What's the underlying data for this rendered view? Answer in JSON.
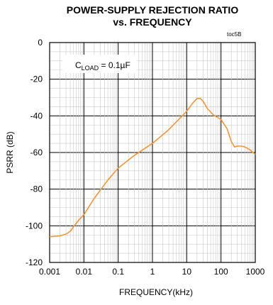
{
  "chart_data": {
    "type": "line",
    "title_line1": "POWER-SUPPLY REJECTION RATIO",
    "title_line2": "vs. FREQUENCY",
    "tag": "toc5B",
    "xlabel": "FREQUENCY(kHz)",
    "ylabel": "PSRR (dB)",
    "x_scale": "log",
    "xlim": [
      0.001,
      1000
    ],
    "ylim": [
      -120,
      0
    ],
    "x_ticks": [
      0.001,
      0.01,
      0.1,
      1,
      10,
      100,
      1000
    ],
    "x_tick_labels": [
      "0.001",
      "0.01",
      "0.1",
      "1",
      "10",
      "100",
      "1000"
    ],
    "y_ticks": [
      0,
      -20,
      -40,
      -60,
      -80,
      -100,
      -120
    ],
    "y_tick_labels": [
      "0",
      "-20",
      "-40",
      "-60",
      "-80",
      "-100",
      "-120"
    ],
    "grid": true,
    "annotation": {
      "main": "C",
      "sub": "LOAD",
      "rest": " = 0.1µF"
    },
    "line_color": "#f0953a",
    "series": [
      {
        "x": [
          0.001,
          0.002,
          0.003,
          0.004,
          0.005,
          0.007,
          0.01,
          0.02,
          0.05,
          0.1,
          0.3,
          1,
          3,
          10,
          15,
          20,
          25,
          30,
          40,
          60,
          100,
          150,
          200,
          250,
          300,
          400,
          500,
          700,
          1000
        ],
        "y": [
          -106,
          -105.5,
          -104.5,
          -103,
          -100.5,
          -97,
          -94,
          -85,
          -75,
          -68.5,
          -61.5,
          -55,
          -47.5,
          -37.5,
          -33,
          -30.5,
          -30.5,
          -32,
          -36,
          -39.5,
          -42,
          -47,
          -54,
          -57,
          -56.5,
          -56.5,
          -57,
          -58.5,
          -61
        ]
      }
    ]
  }
}
